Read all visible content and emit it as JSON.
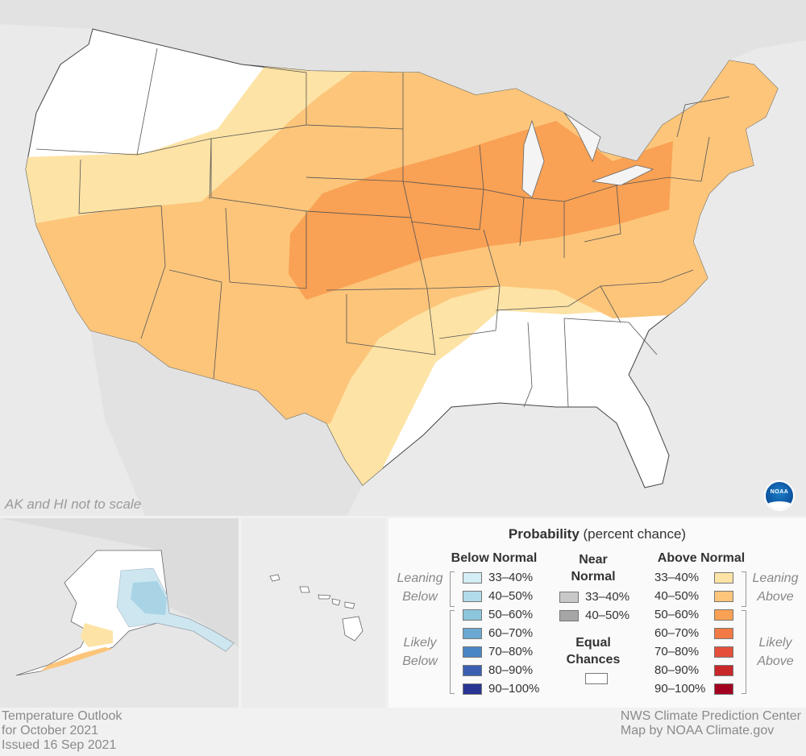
{
  "map": {
    "alaska_hawaii_note": "AK and HI not to scale",
    "logo": "NOAA",
    "category_colors": {
      "equal_chances": "#ffffff",
      "above_33_40": "#fde3a5",
      "above_40_50": "#fcc57a",
      "above_50_60": "#f9a154",
      "below_33_40": "#cde6f0",
      "below_40_50": "#a8d4e5"
    }
  },
  "legend": {
    "title_bold": "Probability",
    "title_rest": " (percent chance)",
    "below_header": "Below Normal",
    "near_header": "Near Normal",
    "above_header": "Above Normal",
    "equal_header": "Equal Chances",
    "leaning_below": "Leaning Below",
    "likely_below": "Likely Below",
    "leaning_above": "Leaning Above",
    "likely_above": "Likely Above",
    "below": [
      {
        "label": "33–40%",
        "color": "#d5edf4"
      },
      {
        "label": "40–50%",
        "color": "#b2dbe9"
      },
      {
        "label": "50–60%",
        "color": "#8cc6dc"
      },
      {
        "label": "60–70%",
        "color": "#6aa8d1"
      },
      {
        "label": "70–80%",
        "color": "#4a85c4"
      },
      {
        "label": "80–90%",
        "color": "#3a5fb0"
      },
      {
        "label": "90–100%",
        "color": "#283593"
      }
    ],
    "near": [
      {
        "label": "33–40%",
        "color": "#c8c8c8"
      },
      {
        "label": "40–50%",
        "color": "#a6a6a6"
      }
    ],
    "equal_color": "#ffffff",
    "above": [
      {
        "label": "33–40%",
        "color": "#fde3a5"
      },
      {
        "label": "40–50%",
        "color": "#fcc57a"
      },
      {
        "label": "50–60%",
        "color": "#f9a154"
      },
      {
        "label": "60–70%",
        "color": "#f27a44"
      },
      {
        "label": "70–80%",
        "color": "#e4503a"
      },
      {
        "label": "80–90%",
        "color": "#c9282b"
      },
      {
        "label": "90–100%",
        "color": "#a30021"
      }
    ]
  },
  "footer": {
    "left_line1": "Temperature Outlook",
    "left_line2": "for October 2021",
    "left_line3": "Issued 16 Sep 2021",
    "right_line1": "NWS Climate Prediction Center",
    "right_line2": "Map by NOAA Climate.gov"
  }
}
